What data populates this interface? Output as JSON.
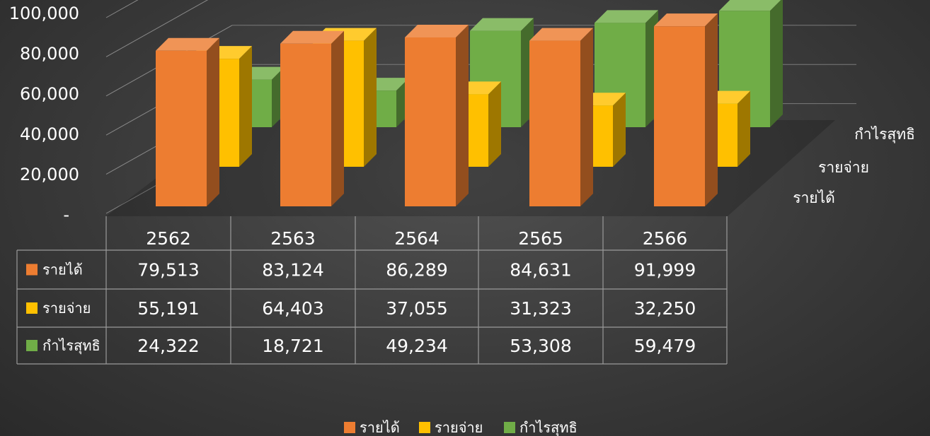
{
  "chart_data": {
    "type": "bar",
    "categories": [
      "2562",
      "2563",
      "2564",
      "2565",
      "2566"
    ],
    "series": [
      {
        "name": "รายได้",
        "values": [
          79513,
          83124,
          86289,
          84631,
          91999
        ],
        "color": "#ed7d31"
      },
      {
        "name": "รายจ่าย",
        "values": [
          55191,
          64403,
          37055,
          31323,
          32250
        ],
        "color": "#ffc000"
      },
      {
        "name": "กำไรสุทธิ",
        "values": [
          24322,
          18721,
          49234,
          53308,
          59479
        ],
        "color": "#70ad47"
      }
    ],
    "y_ticks": [
      "-",
      "20,000",
      "40,000",
      "60,000",
      "80,000",
      "100,000"
    ],
    "ylim": [
      0,
      100000
    ],
    "data_table": {
      "rows": [
        {
          "label": "รายได้",
          "cells": [
            "79,513",
            "83,124",
            "86,289",
            "84,631",
            "91,999"
          ]
        },
        {
          "label": "รายจ่าย",
          "cells": [
            "55,191",
            "64,403",
            "37,055",
            "31,323",
            "32,250"
          ]
        },
        {
          "label": "กำไรสุทธิ",
          "cells": [
            "24,322",
            "18,721",
            "49,234",
            "53,308",
            "59,479"
          ]
        }
      ]
    },
    "legend": [
      "รายได้",
      "รายจ่าย",
      "กำไรสุทธิ"
    ],
    "legend_position": "bottom",
    "gridlines": true
  }
}
